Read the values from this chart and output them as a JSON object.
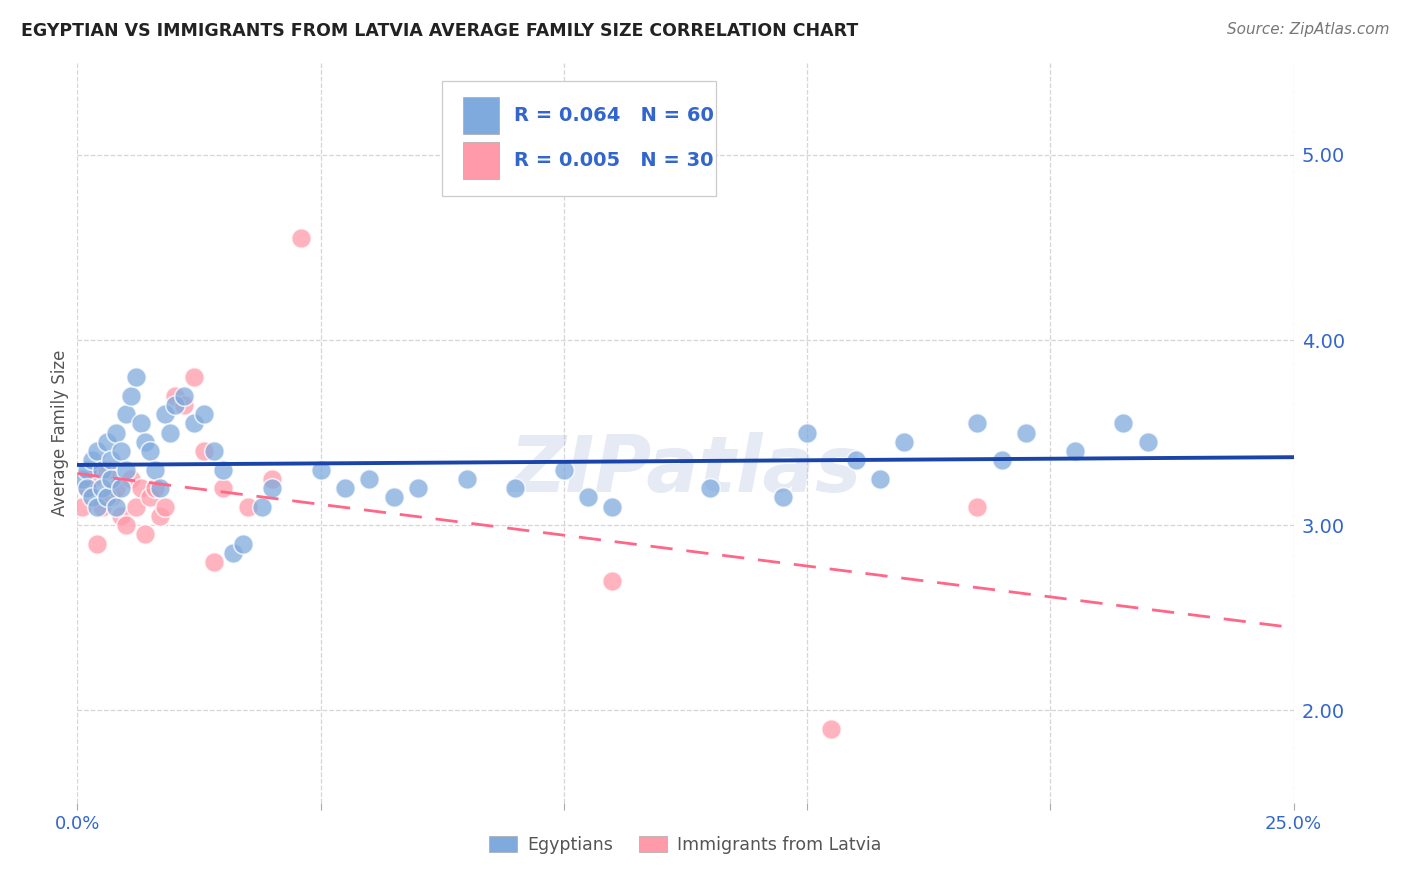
{
  "title": "EGYPTIAN VS IMMIGRANTS FROM LATVIA AVERAGE FAMILY SIZE CORRELATION CHART",
  "source": "Source: ZipAtlas.com",
  "ylabel": "Average Family Size",
  "xlim": [
    0.0,
    0.25
  ],
  "ylim": [
    1.5,
    5.5
  ],
  "yticks": [
    2.0,
    3.0,
    4.0,
    5.0
  ],
  "xticks": [
    0.0,
    0.05,
    0.1,
    0.15,
    0.2,
    0.25
  ],
  "watermark": "ZIPatlas",
  "legend_R1": "0.064",
  "legend_N1": "60",
  "legend_R2": "0.005",
  "legend_N2": "30",
  "blue_color": "#7FAADD",
  "pink_color": "#FF9AAA",
  "line_blue": "#1A44AA",
  "line_pink": "#FF6688",
  "axis_color": "#3366CC",
  "grid_color": "#CCCCCC",
  "egyptians_x": [
    0.001,
    0.002,
    0.002,
    0.003,
    0.003,
    0.004,
    0.004,
    0.005,
    0.005,
    0.006,
    0.006,
    0.007,
    0.007,
    0.008,
    0.008,
    0.009,
    0.009,
    0.01,
    0.01,
    0.011,
    0.012,
    0.013,
    0.014,
    0.015,
    0.016,
    0.017,
    0.018,
    0.019,
    0.02,
    0.022,
    0.024,
    0.026,
    0.028,
    0.03,
    0.032,
    0.034,
    0.038,
    0.04,
    0.05,
    0.055,
    0.06,
    0.065,
    0.07,
    0.08,
    0.09,
    0.1,
    0.105,
    0.11,
    0.13,
    0.145,
    0.15,
    0.16,
    0.165,
    0.17,
    0.185,
    0.19,
    0.195,
    0.205,
    0.215,
    0.22
  ],
  "egyptians_y": [
    3.25,
    3.3,
    3.2,
    3.35,
    3.15,
    3.4,
    3.1,
    3.3,
    3.2,
    3.45,
    3.15,
    3.35,
    3.25,
    3.5,
    3.1,
    3.4,
    3.2,
    3.6,
    3.3,
    3.7,
    3.8,
    3.55,
    3.45,
    3.4,
    3.3,
    3.2,
    3.6,
    3.5,
    3.65,
    3.7,
    3.55,
    3.6,
    3.4,
    3.3,
    2.85,
    2.9,
    3.1,
    3.2,
    3.3,
    3.2,
    3.25,
    3.15,
    3.2,
    3.25,
    3.2,
    3.3,
    3.15,
    3.1,
    3.2,
    3.15,
    3.5,
    3.35,
    3.25,
    3.45,
    3.55,
    3.35,
    3.5,
    3.4,
    3.55,
    3.45
  ],
  "latvia_x": [
    0.001,
    0.002,
    0.003,
    0.004,
    0.005,
    0.006,
    0.007,
    0.008,
    0.009,
    0.01,
    0.011,
    0.012,
    0.013,
    0.014,
    0.015,
    0.016,
    0.017,
    0.018,
    0.02,
    0.022,
    0.024,
    0.026,
    0.028,
    0.03,
    0.035,
    0.04,
    0.046,
    0.11,
    0.155,
    0.185
  ],
  "latvia_y": [
    3.1,
    3.2,
    3.25,
    2.9,
    3.1,
    3.3,
    3.15,
    3.2,
    3.05,
    3.0,
    3.25,
    3.1,
    3.2,
    2.95,
    3.15,
    3.2,
    3.05,
    3.1,
    3.7,
    3.65,
    3.8,
    3.4,
    2.8,
    3.2,
    3.1,
    3.25,
    4.55,
    2.7,
    1.9,
    3.1
  ]
}
